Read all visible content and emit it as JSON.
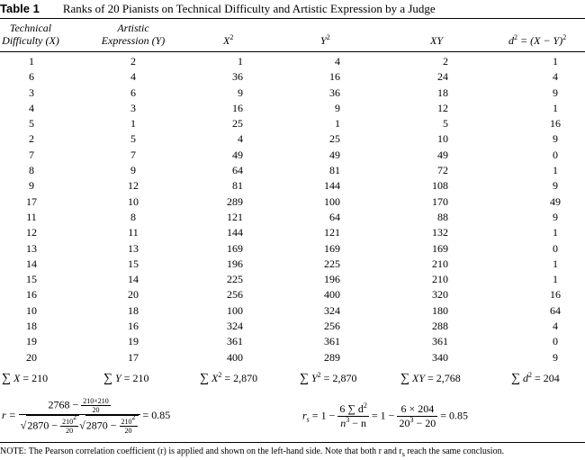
{
  "table": {
    "label": "Table 1",
    "title": "Ranks of 20 Pianists on Technical Difficulty and Artistic Expression by a Judge",
    "headers": {
      "technical_l1": "Technical",
      "technical_l2": "Difficulty (X)",
      "artistic_l1": "Artistic",
      "artistic_l2": "Expression (Y)",
      "x2": "X",
      "y2": "Y",
      "xy": "XY",
      "d2": "d",
      "d2_rest": "= (X − Y)"
    },
    "rows": [
      [
        "1",
        "2",
        "1",
        "4",
        "2",
        "1"
      ],
      [
        "6",
        "4",
        "36",
        "16",
        "24",
        "4"
      ],
      [
        "3",
        "6",
        "9",
        "36",
        "18",
        "9"
      ],
      [
        "4",
        "3",
        "16",
        "9",
        "12",
        "1"
      ],
      [
        "5",
        "1",
        "25",
        "1",
        "5",
        "16"
      ],
      [
        "2",
        "5",
        "4",
        "25",
        "10",
        "9"
      ],
      [
        "7",
        "7",
        "49",
        "49",
        "49",
        "0"
      ],
      [
        "8",
        "9",
        "64",
        "81",
        "72",
        "1"
      ],
      [
        "9",
        "12",
        "81",
        "144",
        "108",
        "9"
      ],
      [
        "17",
        "10",
        "289",
        "100",
        "170",
        "49"
      ],
      [
        "11",
        "8",
        "121",
        "64",
        "88",
        "9"
      ],
      [
        "12",
        "11",
        "144",
        "121",
        "132",
        "1"
      ],
      [
        "13",
        "13",
        "169",
        "169",
        "169",
        "0"
      ],
      [
        "14",
        "15",
        "196",
        "225",
        "210",
        "1"
      ],
      [
        "15",
        "14",
        "225",
        "196",
        "210",
        "1"
      ],
      [
        "16",
        "20",
        "256",
        "400",
        "320",
        "16"
      ],
      [
        "10",
        "18",
        "100",
        "324",
        "180",
        "64"
      ],
      [
        "18",
        "16",
        "324",
        "256",
        "288",
        "4"
      ],
      [
        "19",
        "19",
        "361",
        "361",
        "361",
        "0"
      ],
      [
        "20",
        "17",
        "400",
        "289",
        "340",
        "9"
      ]
    ],
    "sums": {
      "x": "= 210",
      "y": "= 210",
      "x2": "= 2,870",
      "y2": "= 2,870",
      "xy": "= 2,768",
      "d2": "= 204"
    }
  },
  "formula_r": {
    "lhs": "r =",
    "num_a": "2768 −",
    "num_frac_top": "210×210",
    "num_frac_bot": "20",
    "den_a": "2870 −",
    "den_frac_top": "210",
    "den_frac_bot": "20",
    "den_b": "2870 −",
    "result": "= 0.85"
  },
  "formula_rs": {
    "lhs": "r",
    "lhs_sub": "s",
    "eq1": "= 1 −",
    "f1_num": "6 ∑ d",
    "f1_den": "n",
    "f1_den_rest": "− n",
    "eq2": "= 1 −",
    "f2_num": "6 × 204",
    "f2_den": "20",
    "f2_den_rest": "− 20",
    "result": "= 0.85"
  },
  "note": "NOTE: The Pearson correlation coefficient (r) is applied and shown on the left-hand side. Note that both r and r",
  "note_sub": "s",
  "note_end": "reach the same conclusion."
}
